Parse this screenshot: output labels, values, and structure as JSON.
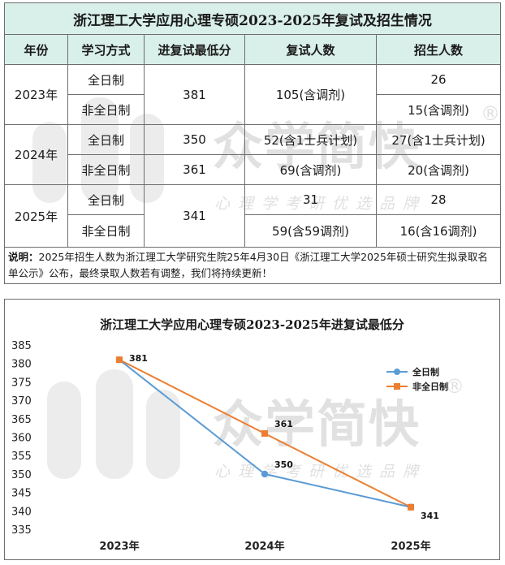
{
  "table": {
    "title": "浙江理工大学应用心理专硕2023-2025年复试及招生情况",
    "headers": [
      "年份",
      "学习方式",
      "进复试最低分",
      "复试人数",
      "招生人数"
    ],
    "rows": {
      "y2023": "2023年",
      "y2024": "2024年",
      "y2025": "2025年",
      "fulltime": "全日制",
      "parttime": "非全日制",
      "s2023": "381",
      "i2023": "105(含调剂)",
      "a2023ft": "26",
      "a2023pt": "15(含调剂)",
      "s2024ft": "350",
      "s2024pt": "361",
      "i2024ft": "52(含1士兵计划)",
      "i2024pt": "69(含调剂)",
      "a2024ft": "27(含1士兵计划)",
      "a2024pt": "20(含调剂)",
      "s2025": "341",
      "i2025ft": "31",
      "i2025pt": "59(含59调剂)",
      "a2025ft": "28",
      "a2025pt": "16(含16调剂)"
    },
    "note_label": "说明：",
    "note_text": "2025年招生人数为浙江理工大学研究生院25年4月30日《浙江理工大学2025年硕士研究生拟录取名单公示》公布，最终录取人数若有调整，我们将持续更新！"
  },
  "watermark": {
    "brand": "众学简快",
    "tagline": "心理学考研优选品牌",
    "registered": "®"
  },
  "chart_data": {
    "type": "line",
    "title": "浙江理工大学应用心理专硕2023-2025年进复试最低分",
    "categories": [
      "2023年",
      "2024年",
      "2025年"
    ],
    "series": [
      {
        "name": "全日制",
        "values": [
          381,
          350,
          341
        ],
        "color": "#5b9bd5",
        "labels": [
          "381",
          "350",
          ""
        ]
      },
      {
        "name": "非全日制",
        "values": [
          381,
          361,
          341
        ],
        "color": "#ed7d31",
        "labels": [
          "",
          "361",
          "341"
        ]
      }
    ],
    "ylim": [
      335,
      385
    ],
    "yticks": [
      "385",
      "380",
      "375",
      "370",
      "365",
      "360",
      "355",
      "350",
      "345",
      "340",
      "335"
    ],
    "grid": false,
    "legend": "right"
  }
}
